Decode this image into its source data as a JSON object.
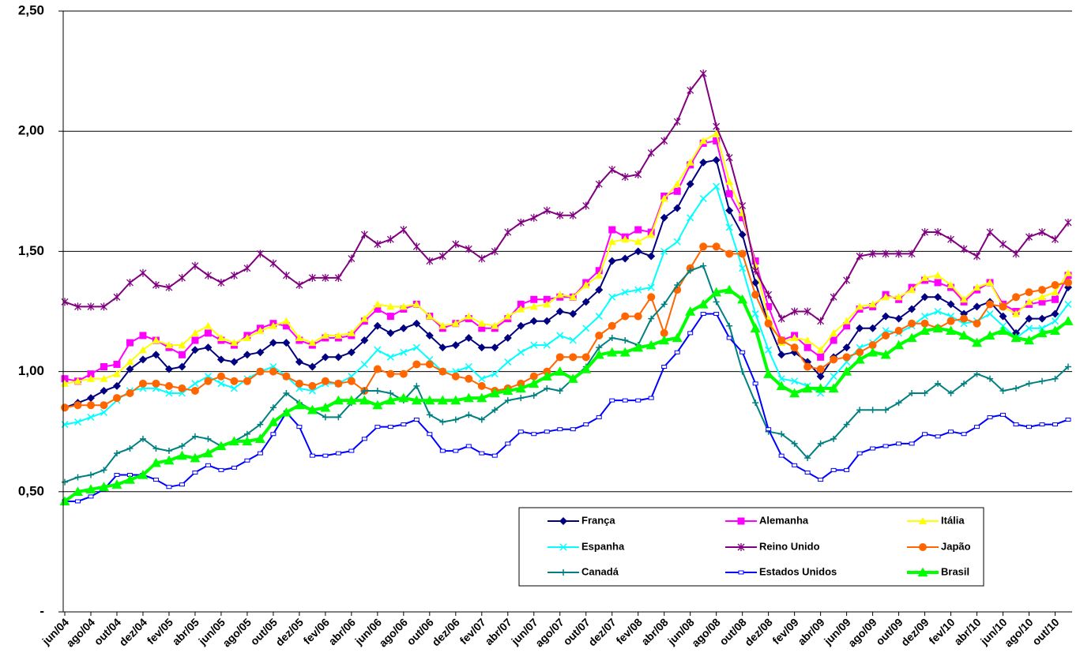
{
  "chart_data": {
    "type": "line",
    "categories": [
      "jun/04",
      null,
      "ago/04",
      null,
      "out/04",
      null,
      "dez/04",
      null,
      "fev/05",
      null,
      "abr/05",
      null,
      "jun/05",
      null,
      "ago/05",
      null,
      "out/05",
      null,
      "dez/05",
      null,
      "fev/06",
      null,
      "abr/06",
      null,
      "jun/06",
      null,
      "ago/06",
      null,
      "out/06",
      null,
      "dez/06",
      null,
      "fev/07",
      null,
      "abr/07",
      null,
      "jun/07",
      null,
      "ago/07",
      null,
      "out/07",
      null,
      "dez/07",
      null,
      "fev/08",
      null,
      "abr/08",
      null,
      "jun/08",
      null,
      "ago/08",
      null,
      "out/08",
      null,
      "dez/08",
      null,
      "fev/09",
      null,
      "abr/09",
      null,
      "jun/09",
      null,
      "ago/09",
      null,
      "out/09",
      null,
      "dez/09",
      null,
      "fev/10",
      null,
      "abr/10",
      null,
      "jun/10",
      null,
      "ago/10",
      null,
      "out/10",
      null
    ],
    "ylim": [
      0,
      2.5
    ],
    "yticks": [
      {
        "value": 0,
        "label": "-"
      },
      {
        "value": 0.5,
        "label": "0,50"
      },
      {
        "value": 1,
        "label": "1,00"
      },
      {
        "value": 1.5,
        "label": "1,50"
      },
      {
        "value": 2,
        "label": "2,00"
      },
      {
        "value": 2.5,
        "label": "2,50"
      }
    ],
    "grid": true,
    "series": [
      {
        "name": "França",
        "color": "#000080",
        "marker": "diamond",
        "values": [
          0.85,
          0.87,
          0.89,
          0.92,
          0.94,
          1.01,
          1.05,
          1.07,
          1.01,
          1.02,
          1.09,
          1.1,
          1.05,
          1.04,
          1.07,
          1.08,
          1.12,
          1.12,
          1.04,
          1.02,
          1.06,
          1.06,
          1.08,
          1.13,
          1.19,
          1.16,
          1.18,
          1.2,
          1.15,
          1.1,
          1.11,
          1.14,
          1.1,
          1.1,
          1.14,
          1.19,
          1.21,
          1.21,
          1.25,
          1.24,
          1.29,
          1.34,
          1.46,
          1.47,
          1.5,
          1.48,
          1.64,
          1.68,
          1.78,
          1.87,
          1.88,
          1.67,
          1.57,
          1.37,
          1.2,
          1.07,
          1.08,
          1.04,
          0.98,
          1.06,
          1.1,
          1.18,
          1.18,
          1.23,
          1.22,
          1.26,
          1.31,
          1.31,
          1.28,
          1.24,
          1.27,
          1.29,
          1.23,
          1.16,
          1.22,
          1.22,
          1.24,
          1.35
        ]
      },
      {
        "name": "Alemanha",
        "color": "#ff00ff",
        "marker": "square",
        "values": [
          0.97,
          0.96,
          0.99,
          1.02,
          1.03,
          1.12,
          1.15,
          1.13,
          1.1,
          1.07,
          1.13,
          1.16,
          1.13,
          1.11,
          1.15,
          1.18,
          1.2,
          1.19,
          1.13,
          1.11,
          1.14,
          1.14,
          1.15,
          1.21,
          1.26,
          1.23,
          1.26,
          1.28,
          1.23,
          1.18,
          1.2,
          1.22,
          1.18,
          1.18,
          1.22,
          1.28,
          1.3,
          1.3,
          1.31,
          1.31,
          1.37,
          1.42,
          1.59,
          1.56,
          1.59,
          1.58,
          1.73,
          1.75,
          1.86,
          1.95,
          1.96,
          1.74,
          1.64,
          1.46,
          1.27,
          1.13,
          1.15,
          1.1,
          1.06,
          1.13,
          1.19,
          1.26,
          1.27,
          1.32,
          1.3,
          1.35,
          1.38,
          1.37,
          1.35,
          1.29,
          1.34,
          1.37,
          1.28,
          1.25,
          1.28,
          1.29,
          1.3,
          1.4
        ]
      },
      {
        "name": "Itália",
        "color": "#ffff00",
        "marker": "triangle",
        "values": [
          0.95,
          0.96,
          0.97,
          0.97,
          0.99,
          1.04,
          1.09,
          1.13,
          1.11,
          1.11,
          1.16,
          1.19,
          1.14,
          1.12,
          1.14,
          1.17,
          1.19,
          1.21,
          1.14,
          1.12,
          1.15,
          1.15,
          1.16,
          1.22,
          1.28,
          1.27,
          1.27,
          1.28,
          1.23,
          1.19,
          1.2,
          1.23,
          1.2,
          1.19,
          1.23,
          1.26,
          1.27,
          1.28,
          1.32,
          1.31,
          1.36,
          1.4,
          1.54,
          1.55,
          1.54,
          1.57,
          1.72,
          1.78,
          1.87,
          1.96,
          1.99,
          1.79,
          1.66,
          1.44,
          1.22,
          1.12,
          1.14,
          1.13,
          1.09,
          1.16,
          1.21,
          1.27,
          1.28,
          1.31,
          1.31,
          1.34,
          1.39,
          1.4,
          1.36,
          1.3,
          1.35,
          1.37,
          1.27,
          1.24,
          1.29,
          1.31,
          1.33,
          1.41
        ]
      },
      {
        "name": "Espanha",
        "color": "#00ffff",
        "marker": "x",
        "values": [
          0.78,
          0.79,
          0.81,
          0.83,
          0.88,
          0.92,
          0.93,
          0.93,
          0.91,
          0.91,
          0.95,
          0.98,
          0.95,
          0.93,
          0.97,
          1.0,
          1.02,
          0.98,
          0.93,
          0.92,
          0.95,
          0.95,
          0.98,
          1.03,
          1.09,
          1.06,
          1.08,
          1.1,
          1.05,
          1.0,
          1.0,
          1.02,
          0.97,
          0.99,
          1.04,
          1.08,
          1.11,
          1.11,
          1.15,
          1.13,
          1.18,
          1.23,
          1.31,
          1.33,
          1.34,
          1.35,
          1.5,
          1.54,
          1.64,
          1.72,
          1.77,
          1.6,
          1.43,
          1.24,
          1.09,
          0.97,
          0.96,
          0.94,
          0.91,
          0.98,
          1.04,
          1.1,
          1.12,
          1.17,
          1.16,
          1.19,
          1.23,
          1.25,
          1.23,
          1.2,
          1.21,
          1.24,
          1.19,
          1.14,
          1.18,
          1.18,
          1.21,
          1.28
        ]
      },
      {
        "name": "Reino Unido",
        "color": "#800080",
        "marker": "star",
        "values": [
          1.29,
          1.27,
          1.27,
          1.27,
          1.31,
          1.37,
          1.41,
          1.36,
          1.35,
          1.39,
          1.44,
          1.4,
          1.37,
          1.4,
          1.43,
          1.49,
          1.45,
          1.4,
          1.36,
          1.39,
          1.39,
          1.39,
          1.47,
          1.57,
          1.53,
          1.55,
          1.59,
          1.52,
          1.46,
          1.48,
          1.53,
          1.51,
          1.47,
          1.5,
          1.58,
          1.62,
          1.64,
          1.67,
          1.65,
          1.65,
          1.69,
          1.78,
          1.84,
          1.81,
          1.82,
          1.91,
          1.96,
          2.04,
          2.17,
          2.24,
          2.02,
          1.89,
          1.69,
          1.42,
          1.32,
          1.22,
          1.25,
          1.25,
          1.21,
          1.31,
          1.38,
          1.48,
          1.49,
          1.49,
          1.49,
          1.49,
          1.58,
          1.58,
          1.55,
          1.51,
          1.48,
          1.58,
          1.53,
          1.49,
          1.56,
          1.58,
          1.55,
          1.62
        ]
      },
      {
        "name": "Japão",
        "color": "#ff6600",
        "marker": "circle",
        "values": [
          0.85,
          0.86,
          0.86,
          0.86,
          0.89,
          0.91,
          0.95,
          0.95,
          0.94,
          0.93,
          0.92,
          0.96,
          0.98,
          0.96,
          0.96,
          1.0,
          1.0,
          0.98,
          0.95,
          0.94,
          0.96,
          0.95,
          0.96,
          0.92,
          1.01,
          0.99,
          0.99,
          1.03,
          1.03,
          1.0,
          0.98,
          0.97,
          0.94,
          0.92,
          0.93,
          0.95,
          0.98,
          1.0,
          1.06,
          1.06,
          1.06,
          1.15,
          1.19,
          1.23,
          1.23,
          1.31,
          1.16,
          1.34,
          1.43,
          1.52,
          1.52,
          1.49,
          1.49,
          1.32,
          1.2,
          1.13,
          1.1,
          1.02,
          1.01,
          1.05,
          1.06,
          1.08,
          1.11,
          1.15,
          1.17,
          1.2,
          1.2,
          1.18,
          1.21,
          1.22,
          1.2,
          1.28,
          1.27,
          1.31,
          1.33,
          1.34,
          1.36,
          1.37
        ]
      },
      {
        "name": "Canadá",
        "color": "#008080",
        "marker": "plus",
        "values": [
          0.54,
          0.56,
          0.57,
          0.59,
          0.66,
          0.68,
          0.72,
          0.68,
          0.67,
          0.69,
          0.73,
          0.72,
          0.69,
          0.71,
          0.74,
          0.78,
          0.85,
          0.91,
          0.87,
          0.84,
          0.81,
          0.81,
          0.87,
          0.92,
          0.92,
          0.91,
          0.88,
          0.94,
          0.82,
          0.79,
          0.8,
          0.82,
          0.8,
          0.84,
          0.88,
          0.89,
          0.9,
          0.93,
          0.92,
          0.97,
          1.02,
          1.1,
          1.14,
          1.13,
          1.11,
          1.22,
          1.28,
          1.36,
          1.42,
          1.44,
          1.29,
          1.19,
          1.0,
          0.87,
          0.75,
          0.74,
          0.7,
          0.64,
          0.7,
          0.72,
          0.78,
          0.84,
          0.84,
          0.84,
          0.87,
          0.91,
          0.91,
          0.95,
          0.91,
          0.95,
          0.99,
          0.97,
          0.92,
          0.93,
          0.95,
          0.96,
          0.97,
          1.02
        ]
      },
      {
        "name": "Estados Unidos",
        "color": "#0000ff",
        "marker": "dash",
        "values": [
          0.46,
          0.46,
          0.48,
          0.51,
          0.57,
          0.57,
          0.57,
          0.55,
          0.52,
          0.53,
          0.58,
          0.61,
          0.59,
          0.6,
          0.63,
          0.66,
          0.74,
          0.83,
          0.77,
          0.65,
          0.65,
          0.66,
          0.67,
          0.72,
          0.77,
          0.77,
          0.78,
          0.8,
          0.74,
          0.67,
          0.67,
          0.69,
          0.66,
          0.65,
          0.7,
          0.75,
          0.74,
          0.75,
          0.76,
          0.76,
          0.78,
          0.81,
          0.88,
          0.88,
          0.88,
          0.89,
          1.02,
          1.08,
          1.16,
          1.24,
          1.24,
          1.14,
          1.08,
          0.95,
          0.76,
          0.65,
          0.61,
          0.58,
          0.55,
          0.59,
          0.59,
          0.66,
          0.68,
          0.69,
          0.7,
          0.7,
          0.74,
          0.73,
          0.75,
          0.74,
          0.77,
          0.81,
          0.82,
          0.78,
          0.77,
          0.78,
          0.78,
          0.8
        ]
      },
      {
        "name": "Brasil",
        "color": "#00ff00",
        "marker": "triangle",
        "values": [
          0.46,
          0.5,
          0.51,
          0.52,
          0.53,
          0.55,
          0.57,
          0.62,
          0.63,
          0.65,
          0.64,
          0.66,
          0.69,
          0.71,
          0.71,
          0.72,
          0.79,
          0.83,
          0.86,
          0.84,
          0.85,
          0.88,
          0.88,
          0.88,
          0.86,
          0.88,
          0.89,
          0.88,
          0.88,
          0.88,
          0.88,
          0.89,
          0.89,
          0.91,
          0.92,
          0.93,
          0.95,
          0.98,
          1.0,
          0.97,
          1.01,
          1.07,
          1.08,
          1.08,
          1.1,
          1.11,
          1.13,
          1.14,
          1.25,
          1.28,
          1.33,
          1.34,
          1.3,
          1.18,
          0.99,
          0.94,
          0.91,
          0.93,
          0.93,
          0.93,
          1.0,
          1.05,
          1.08,
          1.07,
          1.11,
          1.14,
          1.17,
          1.18,
          1.17,
          1.15,
          1.12,
          1.15,
          1.17,
          1.14,
          1.13,
          1.16,
          1.17,
          1.21
        ]
      }
    ]
  }
}
